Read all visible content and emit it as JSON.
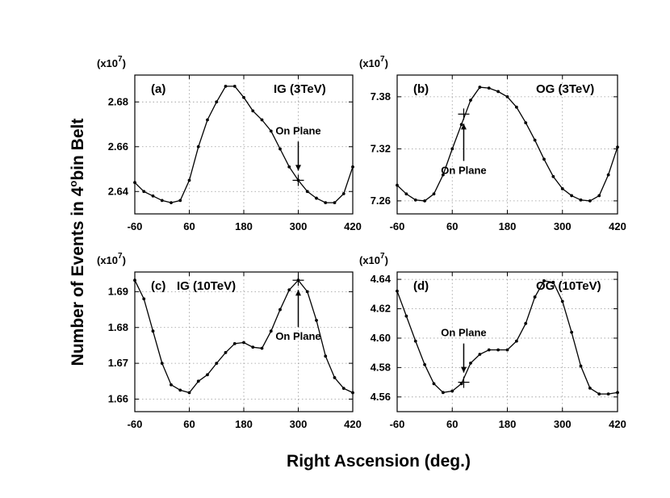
{
  "figure": {
    "xlabel": "Right  Ascension (deg.)",
    "ylabel": "Number of Events in 4",
    "ylabel_sup": "o",
    "ylabel_tail": "bin Belt"
  },
  "chart_data": [
    {
      "type": "line",
      "panel": "(a)",
      "title": "IG (3TeV)",
      "multiplier": "(x10",
      "multiplier_exp": "7",
      "annotation": "On Plane",
      "annotation_side": "above",
      "on_plane": {
        "x": 300,
        "y": 2.645
      },
      "xlim": [
        -60,
        420
      ],
      "ylim": [
        2.63,
        2.692
      ],
      "xticks": [
        -60,
        60,
        180,
        300,
        420
      ],
      "yticks": [
        2.64,
        2.66,
        2.68
      ],
      "ytick_labels": [
        "2.64",
        "2.66",
        "2.68"
      ],
      "grid": true,
      "x": [
        -60,
        -40,
        -20,
        0,
        20,
        40,
        60,
        80,
        100,
        120,
        140,
        160,
        180,
        200,
        220,
        240,
        260,
        280,
        300,
        320,
        340,
        360,
        380,
        400,
        420
      ],
      "y": [
        2.644,
        2.64,
        2.638,
        2.636,
        2.635,
        2.636,
        2.645,
        2.66,
        2.672,
        2.68,
        2.687,
        2.687,
        2.682,
        2.676,
        2.672,
        2.667,
        2.659,
        2.651,
        2.645,
        2.64,
        2.637,
        2.635,
        2.635,
        2.639,
        2.651
      ]
    },
    {
      "type": "line",
      "panel": "(b)",
      "title": "OG (3TeV)",
      "multiplier": "(x10",
      "multiplier_exp": "7",
      "annotation": "On Plane",
      "annotation_side": "below",
      "on_plane": {
        "x": 85,
        "y": 7.36
      },
      "xlim": [
        -60,
        420
      ],
      "ylim": [
        7.245,
        7.405
      ],
      "xticks": [
        -60,
        60,
        180,
        300,
        420
      ],
      "yticks": [
        7.26,
        7.32,
        7.38
      ],
      "ytick_labels": [
        "7.26",
        "7.32",
        "7.38"
      ],
      "grid": true,
      "x": [
        -60,
        -40,
        -20,
        0,
        20,
        40,
        60,
        80,
        100,
        120,
        140,
        160,
        180,
        200,
        220,
        240,
        260,
        280,
        300,
        320,
        340,
        360,
        380,
        400,
        420
      ],
      "y": [
        7.278,
        7.268,
        7.261,
        7.26,
        7.268,
        7.29,
        7.32,
        7.348,
        7.376,
        7.391,
        7.39,
        7.386,
        7.38,
        7.368,
        7.35,
        7.33,
        7.308,
        7.288,
        7.274,
        7.266,
        7.261,
        7.26,
        7.266,
        7.29,
        7.322
      ]
    },
    {
      "type": "line",
      "panel": "(c)",
      "title": "IG (10TeV)",
      "multiplier": "(x10",
      "multiplier_exp": "7",
      "annotation": "On Plane",
      "annotation_side": "below",
      "on_plane": {
        "x": 300,
        "y": 1.6932
      },
      "xlim": [
        -60,
        420
      ],
      "ylim": [
        1.6565,
        1.6955
      ],
      "xticks": [
        -60,
        60,
        180,
        300,
        420
      ],
      "yticks": [
        1.66,
        1.67,
        1.68,
        1.69
      ],
      "ytick_labels": [
        "1.66",
        "1.67",
        "1.68",
        "1.69"
      ],
      "grid": true,
      "x": [
        -60,
        -40,
        -20,
        0,
        20,
        40,
        60,
        80,
        100,
        120,
        140,
        160,
        180,
        200,
        220,
        240,
        260,
        280,
        300,
        320,
        340,
        360,
        380,
        400,
        420
      ],
      "y": [
        1.6932,
        1.688,
        1.679,
        1.67,
        1.664,
        1.6625,
        1.6618,
        1.665,
        1.6668,
        1.67,
        1.673,
        1.6755,
        1.6758,
        1.6745,
        1.6742,
        1.679,
        1.685,
        1.6905,
        1.6932,
        1.69,
        1.682,
        1.672,
        1.666,
        1.663,
        1.6618
      ]
    },
    {
      "type": "line",
      "panel": "(d)",
      "title": "OG (10TeV)",
      "multiplier": "(x10",
      "multiplier_exp": "7",
      "annotation": "On Plane",
      "annotation_side": "above",
      "on_plane": {
        "x": 85,
        "y": 4.57
      },
      "xlim": [
        -60,
        420
      ],
      "ylim": [
        4.55,
        4.645
      ],
      "xticks": [
        -60,
        60,
        180,
        300,
        420
      ],
      "yticks": [
        4.56,
        4.58,
        4.6,
        4.62,
        4.64
      ],
      "ytick_labels": [
        "4.56",
        "4.58",
        "4.60",
        "4.62",
        "4.64"
      ],
      "grid": true,
      "x": [
        -60,
        -40,
        -20,
        0,
        20,
        40,
        60,
        80,
        100,
        120,
        140,
        160,
        180,
        200,
        220,
        240,
        260,
        280,
        300,
        320,
        340,
        360,
        380,
        400,
        420
      ],
      "y": [
        4.632,
        4.615,
        4.598,
        4.582,
        4.569,
        4.563,
        4.564,
        4.569,
        4.583,
        4.589,
        4.592,
        4.592,
        4.592,
        4.598,
        4.61,
        4.628,
        4.639,
        4.638,
        4.625,
        4.604,
        4.581,
        4.566,
        4.562,
        4.562,
        4.563
      ]
    }
  ]
}
